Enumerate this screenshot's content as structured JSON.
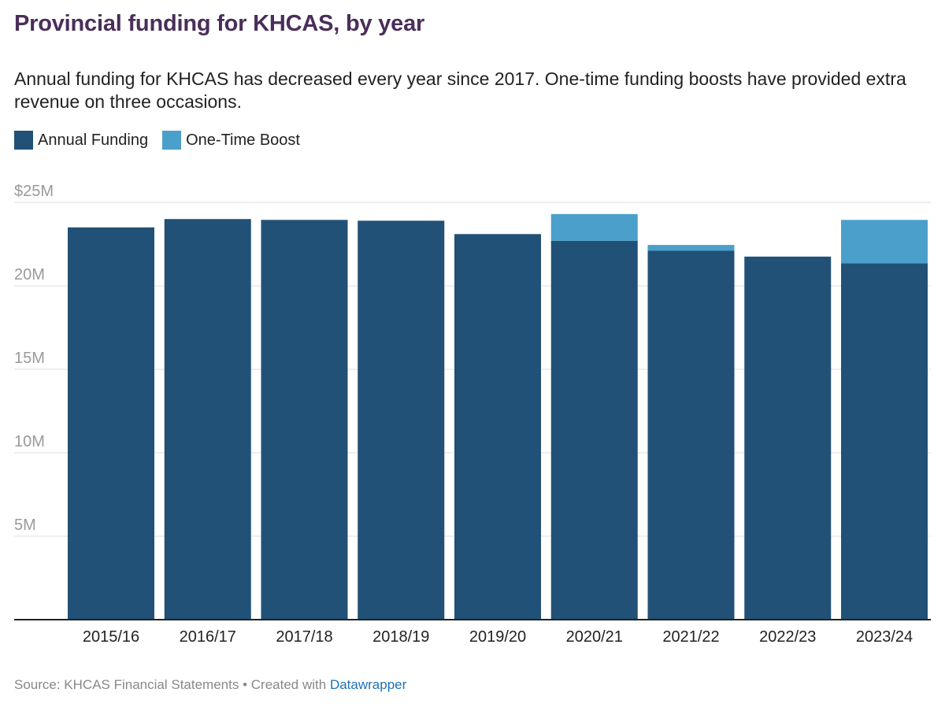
{
  "title": "Provincial funding for KHCAS, by year",
  "subtitle": "Annual funding for KHCAS has decreased every year since 2017. One-time funding boosts have provided extra revenue on three occasions.",
  "legend": [
    {
      "label": "Annual Funding",
      "color": "#215176"
    },
    {
      "label": "One-Time Boost",
      "color": "#4ba0cb"
    }
  ],
  "footer": {
    "source": "Source: KHCAS Financial Statements",
    "separator": " • ",
    "created": "Created with ",
    "link": "Datawrapper"
  },
  "chart_data": {
    "type": "bar",
    "stacked": true,
    "title": "Provincial funding for KHCAS, by year",
    "xlabel": "",
    "ylabel": "",
    "ylim": [
      0,
      25
    ],
    "yticks": [
      {
        "value": 25,
        "label": "$25M"
      },
      {
        "value": 20,
        "label": "20M"
      },
      {
        "value": 15,
        "label": "15M"
      },
      {
        "value": 10,
        "label": "10M"
      },
      {
        "value": 5,
        "label": "5M"
      }
    ],
    "grid": true,
    "categories": [
      "2015/16",
      "2016/17",
      "2017/18",
      "2018/19",
      "2019/20",
      "2020/21",
      "2021/22",
      "2022/23",
      "2023/24"
    ],
    "series": [
      {
        "name": "Annual Funding",
        "color": "#215176",
        "values": [
          23.5,
          24.0,
          23.95,
          23.9,
          23.1,
          22.7,
          22.1,
          21.75,
          21.35
        ]
      },
      {
        "name": "One-Time Boost",
        "color": "#4ba0cb",
        "values": [
          0,
          0,
          0,
          0,
          0,
          1.6,
          0.35,
          0,
          2.6
        ]
      }
    ]
  }
}
